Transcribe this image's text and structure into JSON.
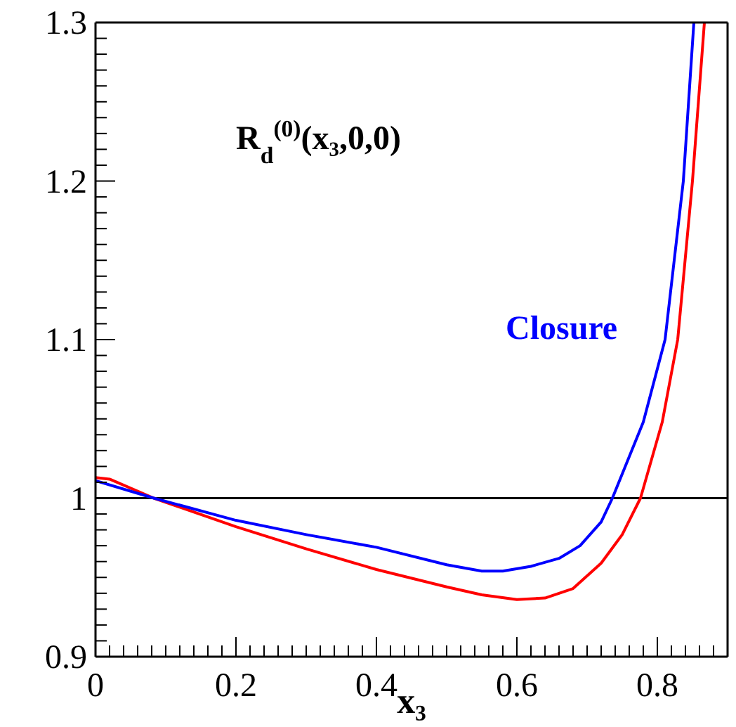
{
  "chart_data": {
    "type": "line",
    "annotations": [
      "R$_{d}$$^{(0)}$(x₃,0,0)"
    ],
    "xlabel": "x₃",
    "xlim": [
      0,
      0.9
    ],
    "ylim": [
      0.9,
      1.3
    ],
    "xticks": [
      0,
      {
        "value": 0.02,
        "label": null
      },
      {
        "value": 0.04,
        "label": null
      },
      {
        "value": 0.06,
        "label": null
      },
      {
        "value": 0.08,
        "label": null
      },
      {
        "value": 0.1,
        "label": null
      },
      {
        "value": 0.12,
        "label": null
      },
      {
        "value": 0.14,
        "label": null
      },
      {
        "value": 0.16,
        "label": null
      },
      {
        "value": 0.18,
        "label": null
      },
      0.2,
      {
        "value": 0.22,
        "label": null
      },
      {
        "value": 0.24,
        "label": null
      },
      {
        "value": 0.26,
        "label": null
      },
      {
        "value": 0.28,
        "label": null
      },
      {
        "value": 0.3,
        "label": null
      },
      {
        "value": 0.32,
        "label": null
      },
      {
        "value": 0.34,
        "label": null
      },
      {
        "value": 0.36,
        "label": null
      },
      {
        "value": 0.38,
        "label": null
      },
      0.4,
      {
        "value": 0.42,
        "label": null
      },
      {
        "value": 0.44,
        "label": null
      },
      {
        "value": 0.46,
        "label": null
      },
      {
        "value": 0.48,
        "label": null
      },
      {
        "value": 0.5,
        "label": null
      },
      {
        "value": 0.52,
        "label": null
      },
      {
        "value": 0.54,
        "label": null
      },
      {
        "value": 0.56,
        "label": null
      },
      {
        "value": 0.58,
        "label": null
      },
      0.6,
      {
        "value": 0.62,
        "label": null
      },
      {
        "value": 0.64,
        "label": null
      },
      {
        "value": 0.66,
        "label": null
      },
      {
        "value": 0.68,
        "label": null
      },
      {
        "value": 0.7,
        "label": null
      },
      {
        "value": 0.72,
        "label": null
      },
      {
        "value": 0.74,
        "label": null
      },
      {
        "value": 0.76,
        "label": null
      },
      {
        "value": 0.78,
        "label": null
      },
      0.8,
      {
        "value": 0.82,
        "label": null
      },
      {
        "value": 0.84,
        "label": null
      },
      {
        "value": 0.86,
        "label": null
      },
      {
        "value": 0.88,
        "label": null
      }
    ],
    "yticks": [
      0.9,
      {
        "value": 0.91,
        "label": null
      },
      {
        "value": 0.92,
        "label": null
      },
      {
        "value": 0.93,
        "label": null
      },
      {
        "value": 0.94,
        "label": null
      },
      {
        "value": 0.95,
        "label": null
      },
      {
        "value": 0.96,
        "label": null
      },
      {
        "value": 0.97,
        "label": null
      },
      {
        "value": 0.98,
        "label": null
      },
      {
        "value": 0.99,
        "label": null
      },
      1,
      {
        "value": 1.01,
        "label": null
      },
      {
        "value": 1.02,
        "label": null
      },
      {
        "value": 1.03,
        "label": null
      },
      {
        "value": 1.04,
        "label": null
      },
      {
        "value": 1.05,
        "label": null
      },
      {
        "value": 1.06,
        "label": null
      },
      {
        "value": 1.07,
        "label": null
      },
      {
        "value": 1.08,
        "label": null
      },
      {
        "value": 1.09,
        "label": null
      },
      1.1,
      {
        "value": 1.11,
        "label": null
      },
      {
        "value": 1.12,
        "label": null
      },
      {
        "value": 1.13,
        "label": null
      },
      {
        "value": 1.14,
        "label": null
      },
      {
        "value": 1.15,
        "label": null
      },
      {
        "value": 1.16,
        "label": null
      },
      {
        "value": 1.17,
        "label": null
      },
      {
        "value": 1.18,
        "label": null
      },
      {
        "value": 1.19,
        "label": null
      },
      1.2,
      {
        "value": 1.21,
        "label": null
      },
      {
        "value": 1.22,
        "label": null
      },
      {
        "value": 1.23,
        "label": null
      },
      {
        "value": 1.24,
        "label": null
      },
      {
        "value": 1.25,
        "label": null
      },
      {
        "value": 1.26,
        "label": null
      },
      {
        "value": 1.27,
        "label": null
      },
      {
        "value": 1.28,
        "label": null
      },
      {
        "value": 1.29,
        "label": null
      },
      1.3
    ],
    "ref_lines": [
      {
        "axis": "y",
        "value": 1,
        "color": "#000000"
      }
    ],
    "marker": "none",
    "line_style": "solid",
    "series": [
      {
        "color": "#ff0000",
        "x": [
          0,
          0.02,
          0.083,
          0.2,
          0.3,
          0.4,
          0.5,
          0.55,
          0.6,
          0.64,
          0.68,
          0.72,
          0.75,
          0.776,
          0.807,
          0.829,
          0.85,
          0.867
        ],
        "values": [
          1.013,
          1.012,
          1.0,
          0.982,
          0.968,
          0.955,
          0.944,
          0.939,
          0.936,
          0.937,
          0.943,
          0.959,
          0.977,
          1.0,
          1.048,
          1.1,
          1.2,
          1.3
        ]
      },
      {
        "name": "Closure",
        "color": "#0000ff",
        "x": [
          0,
          0.083,
          0.2,
          0.3,
          0.4,
          0.5,
          0.55,
          0.58,
          0.62,
          0.66,
          0.69,
          0.72,
          0.736,
          0.78,
          0.811,
          0.837,
          0.852
        ],
        "values": [
          1.011,
          1.0,
          0.986,
          0.977,
          0.969,
          0.958,
          0.954,
          0.954,
          0.957,
          0.962,
          0.97,
          0.985,
          1.0,
          1.048,
          1.1,
          1.2,
          1.3
        ]
      }
    ]
  }
}
